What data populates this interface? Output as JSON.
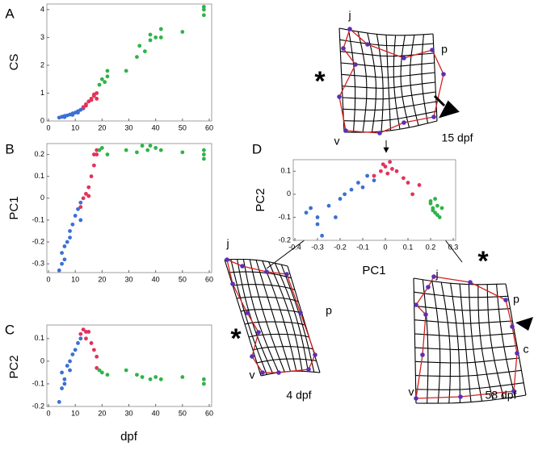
{
  "chart_data": [
    {
      "type": "scatter",
      "panel": "A",
      "ylabel": "CS",
      "xlim": [
        0,
        60
      ],
      "ylim": [
        0,
        4.2
      ],
      "xticks": [
        0,
        10,
        20,
        30,
        40,
        50,
        60
      ],
      "yticks": [
        0,
        1,
        2,
        3,
        4
      ],
      "series": [
        {
          "color": "#3b6fd6",
          "x": [
            4,
            5,
            6,
            7,
            8,
            9,
            10,
            11,
            12,
            13,
            6,
            9,
            11
          ],
          "values": [
            0.12,
            0.15,
            0.18,
            0.2,
            0.23,
            0.27,
            0.3,
            0.35,
            0.4,
            0.45,
            0.14,
            0.22,
            0.3
          ]
        },
        {
          "color": "#e2335a",
          "x": [
            13,
            14,
            15,
            16,
            17,
            18,
            18,
            14,
            16,
            17
          ],
          "values": [
            0.5,
            0.6,
            0.7,
            0.8,
            0.9,
            1.0,
            0.8,
            0.55,
            0.75,
            0.95
          ]
        },
        {
          "color": "#2fb34a",
          "x": [
            19,
            20,
            21,
            22,
            22,
            29,
            33,
            34,
            36,
            38,
            38,
            40,
            42,
            42,
            50,
            58,
            58,
            58
          ],
          "values": [
            1.3,
            1.5,
            1.4,
            1.6,
            1.8,
            1.8,
            2.3,
            2.7,
            2.5,
            2.9,
            3.1,
            3.0,
            3.3,
            3.0,
            3.2,
            3.8,
            4.0,
            4.1
          ]
        }
      ]
    },
    {
      "type": "scatter",
      "panel": "B",
      "ylabel": "PC1",
      "xlim": [
        0,
        60
      ],
      "ylim": [
        -0.34,
        0.25
      ],
      "xticks": [
        0,
        10,
        20,
        30,
        40,
        50,
        60
      ],
      "yticks": [
        -0.3,
        -0.2,
        -0.1,
        0,
        0.1,
        0.2
      ],
      "series": [
        {
          "color": "#3b6fd6",
          "x": [
            4,
            5,
            5,
            6,
            7,
            8,
            9,
            10,
            11,
            12,
            12,
            6,
            8
          ],
          "values": [
            -0.33,
            -0.3,
            -0.25,
            -0.28,
            -0.2,
            -0.15,
            -0.12,
            -0.08,
            -0.05,
            -0.1,
            -0.02,
            -0.22,
            -0.18
          ]
        },
        {
          "color": "#e2335a",
          "x": [
            12,
            13,
            14,
            15,
            16,
            17,
            17,
            18,
            18,
            15
          ],
          "values": [
            -0.04,
            0,
            0.02,
            0.05,
            0.1,
            0.15,
            0.2,
            0.2,
            0.22,
            0.01
          ]
        },
        {
          "color": "#2fb34a",
          "x": [
            19,
            20,
            22,
            29,
            33,
            35,
            37,
            38,
            40,
            42,
            50,
            58,
            58,
            58
          ],
          "values": [
            0.22,
            0.23,
            0.2,
            0.22,
            0.21,
            0.24,
            0.22,
            0.24,
            0.23,
            0.22,
            0.21,
            0.18,
            0.22,
            0.2
          ]
        }
      ]
    },
    {
      "type": "scatter",
      "panel": "C",
      "ylabel": "PC2",
      "xlabel": "dpf",
      "xlim": [
        0,
        60
      ],
      "ylim": [
        -0.2,
        0.16
      ],
      "xticks": [
        0,
        10,
        20,
        30,
        40,
        50,
        60
      ],
      "yticks": [
        -0.2,
        -0.1,
        0,
        0.1
      ],
      "series": [
        {
          "color": "#3b6fd6",
          "x": [
            4,
            5,
            5,
            6,
            7,
            8,
            9,
            10,
            11,
            12,
            6,
            8
          ],
          "values": [
            -0.18,
            -0.05,
            -0.12,
            -0.08,
            -0.02,
            0,
            0.03,
            0.05,
            0.08,
            0.1,
            -0.1,
            -0.04
          ]
        },
        {
          "color": "#e2335a",
          "x": [
            12,
            13,
            14,
            15,
            16,
            17,
            18,
            18,
            14
          ],
          "values": [
            0.12,
            0.14,
            0.1,
            0.13,
            0.08,
            0.05,
            -0.03,
            0.02,
            0.13
          ]
        },
        {
          "color": "#2fb34a",
          "x": [
            19,
            20,
            22,
            29,
            33,
            35,
            38,
            40,
            42,
            50,
            58,
            58
          ],
          "values": [
            -0.04,
            -0.05,
            -0.06,
            -0.04,
            -0.06,
            -0.07,
            -0.08,
            -0.07,
            -0.08,
            -0.07,
            -0.08,
            -0.1
          ]
        }
      ]
    },
    {
      "type": "scatter",
      "panel": "D",
      "ylabel": "PC2",
      "xlabel": "PC1",
      "xlim": [
        -0.4,
        0.3
      ],
      "ylim": [
        -0.2,
        0.15
      ],
      "xticks": [
        -0.4,
        -0.3,
        -0.2,
        -0.1,
        0,
        0.1,
        0.2,
        0.3
      ],
      "yticks": [
        -0.2,
        -0.1,
        0,
        0.1
      ],
      "series": [
        {
          "color": "#3b6fd6",
          "x": [
            -0.35,
            -0.3,
            -0.28,
            -0.25,
            -0.2,
            -0.15,
            -0.12,
            -0.1,
            -0.08,
            -0.05,
            -0.3,
            -0.22,
            -0.33,
            -0.18
          ],
          "values": [
            -0.08,
            -0.1,
            -0.18,
            -0.05,
            -0.02,
            0.02,
            0.05,
            0.03,
            0.08,
            0.06,
            -0.13,
            -0.1,
            -0.06,
            0.0
          ]
        },
        {
          "color": "#e2335a",
          "x": [
            -0.05,
            -0.02,
            0,
            0.02,
            0.03,
            0.05,
            0.08,
            0.1,
            0.12,
            0.01,
            -0.01,
            0.15
          ],
          "values": [
            0.08,
            0.1,
            0.12,
            0.14,
            0.11,
            0.1,
            0.07,
            0.05,
            0.0,
            0.09,
            0.13,
            0.04
          ]
        },
        {
          "color": "#2fb34a",
          "x": [
            0.2,
            0.21,
            0.22,
            0.23,
            0.24,
            0.22,
            0.21,
            0.23,
            0.25,
            0.2
          ],
          "values": [
            -0.04,
            -0.06,
            -0.08,
            -0.05,
            -0.1,
            -0.02,
            -0.07,
            -0.09,
            -0.06,
            -0.03
          ]
        }
      ]
    }
  ],
  "grids": [
    {
      "age": "15 dpf",
      "star": "*",
      "landmarks": [
        "j",
        "p",
        "v"
      ]
    },
    {
      "age": "4 dpf",
      "star": "*",
      "landmarks": [
        "j",
        "p",
        "v"
      ]
    },
    {
      "age": "58 dpf",
      "star": "*",
      "landmarks": [
        "j",
        "p",
        "c",
        "v"
      ]
    }
  ]
}
